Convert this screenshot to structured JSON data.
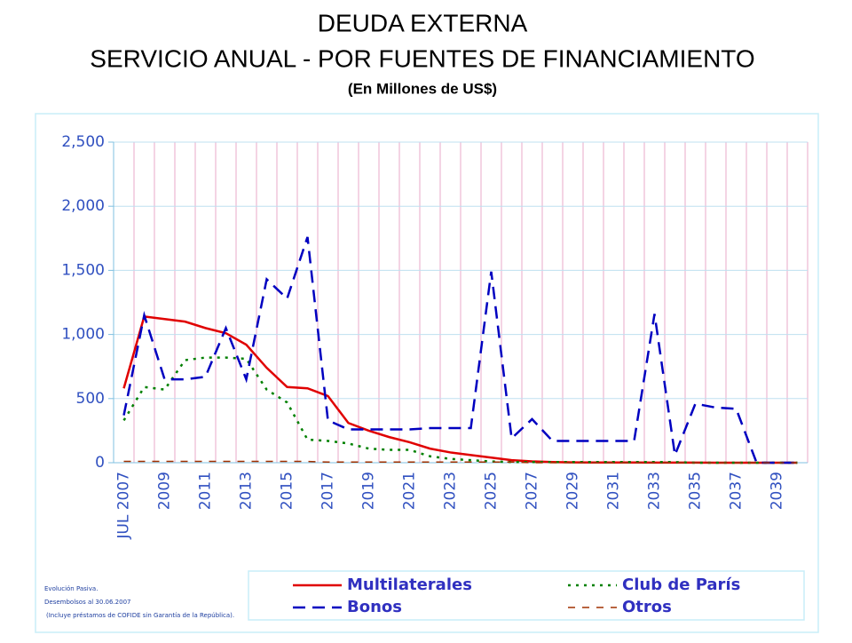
{
  "chart_data": {
    "type": "line",
    "title": "DEUDA EXTERNA",
    "subtitle": "SERVICIO ANUAL - POR FUENTES DE FINANCIAMIENTO",
    "units_label": "(En Millones de US$)",
    "categories": [
      "JUL 2007",
      null,
      "2009",
      null,
      "2011",
      null,
      "2013",
      null,
      "2015",
      null,
      "2017",
      null,
      "2019",
      null,
      "2021",
      null,
      "2023",
      null,
      "2025",
      null,
      "2027",
      null,
      "2029",
      null,
      "2031",
      null,
      "2033",
      null,
      "2035",
      null,
      "2037",
      null,
      "2039",
      null
    ],
    "ylim": [
      0,
      2500
    ],
    "yticks": [
      0,
      500,
      {
        "value": 1000,
        "label": "1,000"
      },
      {
        "value": 1500,
        "label": "1,500"
      },
      {
        "value": 2000,
        "label": "2,000"
      },
      {
        "value": 2500,
        "label": "2,500"
      }
    ],
    "grid": true,
    "series": [
      {
        "name": "Multilaterales",
        "color": "#e00000",
        "dash": "none",
        "width": 2.5,
        "values": [
          580,
          1140,
          1120,
          1100,
          1050,
          1010,
          920,
          740,
          590,
          580,
          520,
          310,
          250,
          200,
          160,
          110,
          80,
          60,
          40,
          20,
          10,
          5,
          3,
          2,
          2,
          2,
          1,
          1,
          1,
          0,
          0,
          0,
          0,
          0
        ]
      },
      {
        "name": "Club de París",
        "color": "#008000",
        "dash": "3 6",
        "width": 2.5,
        "values": [
          330,
          590,
          570,
          800,
          820,
          820,
          810,
          570,
          470,
          180,
          170,
          150,
          110,
          100,
          100,
          50,
          30,
          20,
          10,
          5,
          5,
          5,
          5,
          5,
          5,
          5,
          5,
          5,
          0,
          0,
          0,
          0,
          0,
          0
        ]
      },
      {
        "name": "Bonos",
        "color": "#0000c0",
        "dash": "14 8",
        "width": 2.5,
        "values": [
          370,
          1150,
          650,
          650,
          670,
          1050,
          650,
          1430,
          1280,
          1760,
          330,
          260,
          260,
          260,
          260,
          270,
          270,
          270,
          1490,
          190,
          340,
          170,
          170,
          170,
          170,
          170,
          1160,
          60,
          460,
          430,
          420,
          0,
          0,
          0
        ]
      },
      {
        "name": "Otros",
        "color": "#a03000",
        "dash": "8 8",
        "width": 1.5,
        "values": [
          10,
          10,
          10,
          10,
          10,
          10,
          10,
          10,
          10,
          10,
          5,
          5,
          5,
          5,
          5,
          5,
          5,
          5,
          5,
          5,
          0,
          0,
          0,
          0,
          0,
          0,
          0,
          0,
          0,
          0,
          0,
          0,
          0,
          0
        ]
      }
    ],
    "notes": [
      "Evolución Pasiva.",
      "Desembolsos al 30.06.2007",
      "(Incluye préstamos de COFIDE sin Garantía de la República)."
    ]
  }
}
